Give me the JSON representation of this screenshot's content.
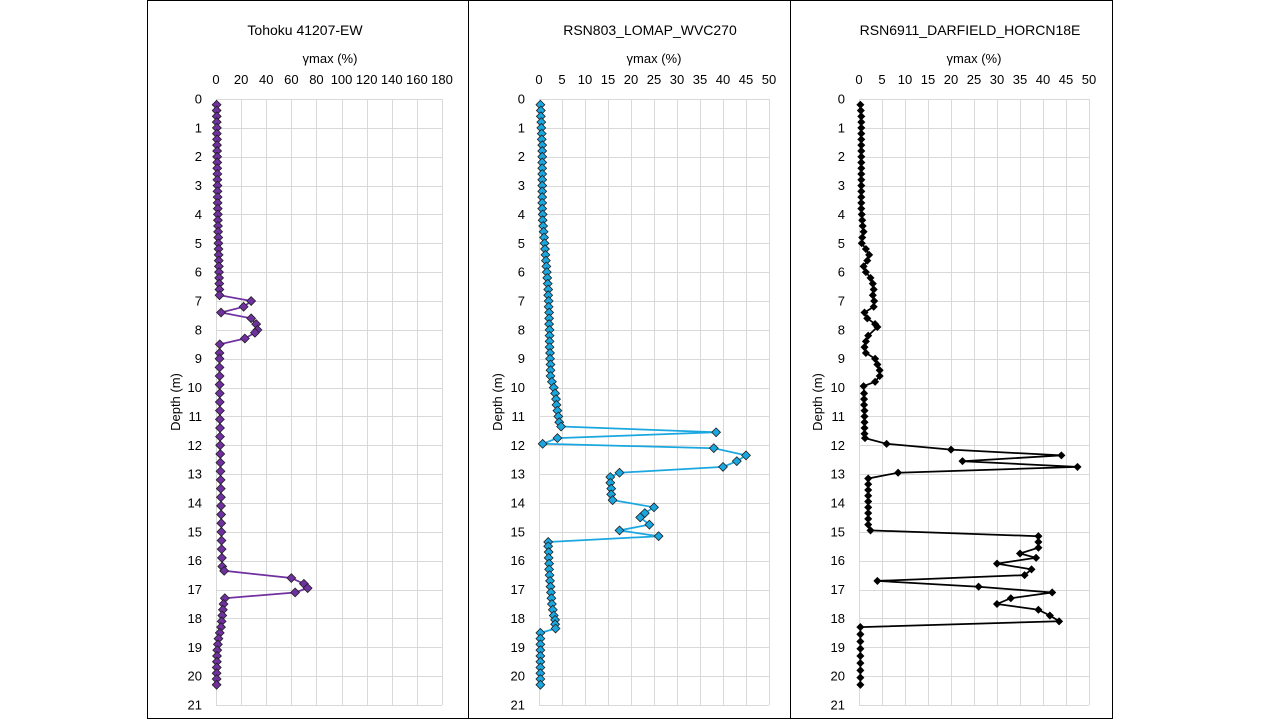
{
  "chart_data": [
    {
      "type": "line",
      "title": "Tohoku 41207-EW",
      "xlabel": "γmax (%)",
      "ylabel": "Depth (m)",
      "xlim": [
        0,
        180
      ],
      "xticks": [
        0,
        20,
        40,
        60,
        80,
        100,
        120,
        140,
        160,
        180
      ],
      "ylim": [
        0,
        21
      ],
      "yticks": [
        0,
        1,
        2,
        3,
        4,
        5,
        6,
        7,
        8,
        9,
        10,
        11,
        12,
        13,
        14,
        15,
        16,
        17,
        18,
        19,
        20,
        21
      ],
      "y_inverted": true,
      "x_axis_position": "top",
      "grid": true,
      "line_color": "#7030a0",
      "marker": "diamond",
      "marker_color": "#7030a0",
      "points": [
        [
          0.5,
          0.2
        ],
        [
          0.5,
          0.4
        ],
        [
          0.6,
          0.6
        ],
        [
          0.6,
          0.8
        ],
        [
          0.7,
          1.0
        ],
        [
          0.7,
          1.2
        ],
        [
          0.8,
          1.4
        ],
        [
          0.8,
          1.6
        ],
        [
          0.9,
          1.8
        ],
        [
          0.9,
          2.0
        ],
        [
          1.0,
          2.2
        ],
        [
          1.0,
          2.4
        ],
        [
          1.1,
          2.6
        ],
        [
          1.1,
          2.8
        ],
        [
          1.2,
          3.0
        ],
        [
          1.2,
          3.2
        ],
        [
          1.3,
          3.4
        ],
        [
          1.3,
          3.6
        ],
        [
          1.4,
          3.8
        ],
        [
          1.5,
          4.0
        ],
        [
          1.5,
          4.2
        ],
        [
          1.6,
          4.4
        ],
        [
          1.7,
          4.6
        ],
        [
          1.8,
          4.8
        ],
        [
          1.9,
          5.0
        ],
        [
          2.0,
          5.2
        ],
        [
          2.1,
          5.4
        ],
        [
          2.2,
          5.6
        ],
        [
          2.3,
          5.8
        ],
        [
          2.4,
          6.0
        ],
        [
          2.5,
          6.2
        ],
        [
          2.6,
          6.4
        ],
        [
          2.7,
          6.6
        ],
        [
          2.8,
          6.8
        ],
        [
          28,
          7.0
        ],
        [
          22,
          7.2
        ],
        [
          4,
          7.4
        ],
        [
          28,
          7.6
        ],
        [
          32,
          7.8
        ],
        [
          33,
          8.0
        ],
        [
          31,
          8.1
        ],
        [
          23,
          8.3
        ],
        [
          3,
          8.5
        ],
        [
          2.8,
          8.8
        ],
        [
          2.8,
          9.0
        ],
        [
          2.8,
          9.3
        ],
        [
          2.9,
          9.6
        ],
        [
          2.9,
          9.9
        ],
        [
          3.0,
          10.2
        ],
        [
          3.0,
          10.5
        ],
        [
          3.1,
          10.8
        ],
        [
          3.1,
          11.1
        ],
        [
          3.2,
          11.4
        ],
        [
          3.2,
          11.7
        ],
        [
          3.3,
          12.0
        ],
        [
          3.4,
          12.3
        ],
        [
          3.5,
          12.6
        ],
        [
          3.6,
          12.9
        ],
        [
          3.7,
          13.2
        ],
        [
          3.8,
          13.5
        ],
        [
          3.9,
          13.8
        ],
        [
          4.0,
          14.1
        ],
        [
          4.1,
          14.4
        ],
        [
          4.2,
          14.7
        ],
        [
          4.3,
          15.0
        ],
        [
          4.4,
          15.3
        ],
        [
          4.5,
          15.6
        ],
        [
          4.7,
          15.9
        ],
        [
          5.0,
          16.2
        ],
        [
          6.5,
          16.35
        ],
        [
          60,
          16.6
        ],
        [
          70,
          16.8
        ],
        [
          73,
          16.95
        ],
        [
          63,
          17.1
        ],
        [
          7,
          17.3
        ],
        [
          6.0,
          17.5
        ],
        [
          5.5,
          17.7
        ],
        [
          5.0,
          17.9
        ],
        [
          4.5,
          18.1
        ],
        [
          4.0,
          18.3
        ],
        [
          3.0,
          18.5
        ],
        [
          2.0,
          18.7
        ],
        [
          1.5,
          18.9
        ],
        [
          1.0,
          19.1
        ],
        [
          0.8,
          19.3
        ],
        [
          0.7,
          19.5
        ],
        [
          0.6,
          19.7
        ],
        [
          0.5,
          19.9
        ],
        [
          0.5,
          20.1
        ],
        [
          0.5,
          20.3
        ]
      ]
    },
    {
      "type": "line",
      "title": "RSN803_LOMAP_WVC270",
      "xlabel": "γmax (%)",
      "ylabel": "Depth (m)",
      "xlim": [
        0,
        50
      ],
      "xticks": [
        0,
        5,
        10,
        15,
        20,
        25,
        30,
        35,
        40,
        45,
        50
      ],
      "ylim": [
        0,
        21
      ],
      "yticks": [
        0,
        1,
        2,
        3,
        4,
        5,
        6,
        7,
        8,
        9,
        10,
        11,
        12,
        13,
        14,
        15,
        16,
        17,
        18,
        19,
        20,
        21
      ],
      "y_inverted": true,
      "x_axis_position": "top",
      "grid": true,
      "line_color": "#1aa7e0",
      "marker": "diamond",
      "marker_color": "#1aa7e0",
      "points": [
        [
          0.3,
          0.2
        ],
        [
          0.4,
          0.4
        ],
        [
          0.4,
          0.6
        ],
        [
          0.5,
          0.8
        ],
        [
          0.5,
          1.0
        ],
        [
          0.6,
          1.2
        ],
        [
          0.6,
          1.4
        ],
        [
          0.7,
          1.6
        ],
        [
          0.7,
          1.8
        ],
        [
          0.7,
          2.0
        ],
        [
          0.7,
          2.2
        ],
        [
          0.7,
          2.4
        ],
        [
          0.7,
          2.6
        ],
        [
          0.7,
          2.8
        ],
        [
          0.7,
          3.0
        ],
        [
          0.7,
          3.2
        ],
        [
          0.7,
          3.4
        ],
        [
          0.7,
          3.6
        ],
        [
          0.7,
          3.8
        ],
        [
          0.8,
          4.0
        ],
        [
          0.8,
          4.2
        ],
        [
          0.9,
          4.4
        ],
        [
          1.0,
          4.6
        ],
        [
          1.1,
          4.8
        ],
        [
          1.2,
          5.0
        ],
        [
          1.3,
          5.2
        ],
        [
          1.4,
          5.4
        ],
        [
          1.5,
          5.6
        ],
        [
          1.6,
          5.8
        ],
        [
          1.7,
          6.0
        ],
        [
          1.8,
          6.2
        ],
        [
          1.9,
          6.4
        ],
        [
          2.0,
          6.6
        ],
        [
          2.0,
          6.8
        ],
        [
          2.1,
          7.0
        ],
        [
          2.1,
          7.2
        ],
        [
          2.2,
          7.4
        ],
        [
          2.2,
          7.6
        ],
        [
          2.2,
          7.8
        ],
        [
          2.3,
          8.0
        ],
        [
          2.3,
          8.2
        ],
        [
          2.3,
          8.4
        ],
        [
          2.3,
          8.6
        ],
        [
          2.4,
          8.8
        ],
        [
          2.4,
          9.0
        ],
        [
          2.5,
          9.2
        ],
        [
          2.5,
          9.4
        ],
        [
          2.5,
          9.6
        ],
        [
          2.8,
          9.8
        ],
        [
          3.2,
          10.0
        ],
        [
          3.5,
          10.2
        ],
        [
          3.7,
          10.4
        ],
        [
          3.8,
          10.6
        ],
        [
          4.0,
          10.8
        ],
        [
          4.2,
          11.0
        ],
        [
          4.4,
          11.2
        ],
        [
          4.8,
          11.35
        ],
        [
          38.5,
          11.55
        ],
        [
          4,
          11.75
        ],
        [
          0.8,
          11.95
        ],
        [
          38,
          12.1
        ],
        [
          45,
          12.35
        ],
        [
          43,
          12.55
        ],
        [
          40,
          12.75
        ],
        [
          17.5,
          12.95
        ],
        [
          15.5,
          13.1
        ],
        [
          15.5,
          13.3
        ],
        [
          15.7,
          13.5
        ],
        [
          15.7,
          13.7
        ],
        [
          16,
          13.9
        ],
        [
          25,
          14.15
        ],
        [
          23,
          14.35
        ],
        [
          22,
          14.5
        ],
        [
          24,
          14.75
        ],
        [
          17.5,
          14.95
        ],
        [
          26,
          15.15
        ],
        [
          2,
          15.35
        ],
        [
          2,
          15.5
        ],
        [
          2.1,
          15.7
        ],
        [
          2.1,
          15.9
        ],
        [
          2.2,
          16.1
        ],
        [
          2.2,
          16.3
        ],
        [
          2.3,
          16.5
        ],
        [
          2.4,
          16.7
        ],
        [
          2.5,
          16.9
        ],
        [
          2.6,
          17.1
        ],
        [
          2.7,
          17.3
        ],
        [
          2.8,
          17.5
        ],
        [
          3.0,
          17.7
        ],
        [
          3.2,
          17.9
        ],
        [
          3.5,
          18.05
        ],
        [
          3.5,
          18.2
        ],
        [
          3.6,
          18.35
        ],
        [
          0.3,
          18.5
        ],
        [
          0.3,
          18.7
        ],
        [
          0.3,
          18.9
        ],
        [
          0.3,
          19.1
        ],
        [
          0.3,
          19.3
        ],
        [
          0.3,
          19.5
        ],
        [
          0.3,
          19.7
        ],
        [
          0.3,
          19.9
        ],
        [
          0.3,
          20.1
        ],
        [
          0.3,
          20.3
        ]
      ]
    },
    {
      "type": "line",
      "title": "RSN6911_DARFIELD_HORCN18E",
      "xlabel": "γmax (%)",
      "ylabel": "Depth (m)",
      "xlim": [
        0,
        50
      ],
      "xticks": [
        0,
        5,
        10,
        15,
        20,
        25,
        30,
        35,
        40,
        45,
        50
      ],
      "ylim": [
        0,
        21
      ],
      "yticks": [
        0,
        1,
        2,
        3,
        4,
        5,
        6,
        7,
        8,
        9,
        10,
        11,
        12,
        13,
        14,
        15,
        16,
        17,
        18,
        19,
        20,
        21
      ],
      "y_inverted": true,
      "x_axis_position": "top",
      "grid": true,
      "line_color": "#000000",
      "marker": "diamond",
      "marker_color": "#000000",
      "points": [
        [
          0.3,
          0.2
        ],
        [
          0.4,
          0.4
        ],
        [
          0.5,
          0.6
        ],
        [
          0.5,
          0.8
        ],
        [
          0.5,
          1.0
        ],
        [
          0.5,
          1.2
        ],
        [
          0.5,
          1.4
        ],
        [
          0.5,
          1.6
        ],
        [
          0.5,
          1.8
        ],
        [
          0.5,
          2.0
        ],
        [
          0.5,
          2.2
        ],
        [
          0.5,
          2.4
        ],
        [
          0.5,
          2.6
        ],
        [
          0.5,
          2.8
        ],
        [
          0.5,
          3.0
        ],
        [
          0.5,
          3.2
        ],
        [
          0.5,
          3.4
        ],
        [
          0.5,
          3.6
        ],
        [
          0.5,
          3.8
        ],
        [
          0.6,
          4.0
        ],
        [
          0.7,
          4.2
        ],
        [
          0.8,
          4.4
        ],
        [
          1.0,
          4.6
        ],
        [
          0.7,
          4.8
        ],
        [
          0.6,
          5.0
        ],
        [
          1.5,
          5.2
        ],
        [
          2.2,
          5.4
        ],
        [
          1.8,
          5.6
        ],
        [
          1.0,
          5.8
        ],
        [
          1.5,
          6.0
        ],
        [
          2.5,
          6.2
        ],
        [
          3.0,
          6.4
        ],
        [
          3.2,
          6.6
        ],
        [
          3.0,
          6.8
        ],
        [
          3.3,
          7.0
        ],
        [
          3.2,
          7.2
        ],
        [
          1.2,
          7.4
        ],
        [
          1.8,
          7.6
        ],
        [
          3.5,
          7.8
        ],
        [
          4.0,
          7.9
        ],
        [
          2.0,
          8.2
        ],
        [
          1.5,
          8.4
        ],
        [
          1.2,
          8.6
        ],
        [
          1.5,
          8.8
        ],
        [
          3.5,
          9.0
        ],
        [
          4.0,
          9.2
        ],
        [
          4.5,
          9.4
        ],
        [
          4.5,
          9.6
        ],
        [
          3.5,
          9.8
        ],
        [
          1.0,
          9.95
        ],
        [
          1.1,
          10.2
        ],
        [
          1.1,
          10.4
        ],
        [
          1.1,
          10.6
        ],
        [
          1.2,
          10.8
        ],
        [
          1.2,
          11.0
        ],
        [
          1.2,
          11.2
        ],
        [
          1.2,
          11.4
        ],
        [
          1.2,
          11.6
        ],
        [
          1.3,
          11.75
        ],
        [
          6,
          11.95
        ],
        [
          20,
          12.15
        ],
        [
          44,
          12.35
        ],
        [
          22.5,
          12.55
        ],
        [
          47.5,
          12.75
        ],
        [
          8.5,
          12.95
        ],
        [
          2,
          13.15
        ],
        [
          2,
          13.35
        ],
        [
          2,
          13.55
        ],
        [
          2,
          13.75
        ],
        [
          2,
          13.95
        ],
        [
          2,
          14.15
        ],
        [
          2,
          14.35
        ],
        [
          2,
          14.55
        ],
        [
          2,
          14.75
        ],
        [
          2.5,
          14.95
        ],
        [
          39,
          15.15
        ],
        [
          39,
          15.35
        ],
        [
          39,
          15.55
        ],
        [
          35,
          15.75
        ],
        [
          38.5,
          15.9
        ],
        [
          30,
          16.1
        ],
        [
          37.5,
          16.3
        ],
        [
          36,
          16.5
        ],
        [
          4,
          16.7
        ],
        [
          26,
          16.9
        ],
        [
          42,
          17.1
        ],
        [
          33,
          17.3
        ],
        [
          30,
          17.5
        ],
        [
          39,
          17.7
        ],
        [
          41.5,
          17.9
        ],
        [
          43.5,
          18.1
        ],
        [
          0.3,
          18.3
        ],
        [
          0.3,
          18.55
        ],
        [
          0.3,
          18.8
        ],
        [
          0.3,
          19.05
        ],
        [
          0.3,
          19.3
        ],
        [
          0.3,
          19.55
        ],
        [
          0.3,
          19.8
        ],
        [
          0.3,
          20.05
        ],
        [
          0.3,
          20.3
        ]
      ]
    }
  ]
}
